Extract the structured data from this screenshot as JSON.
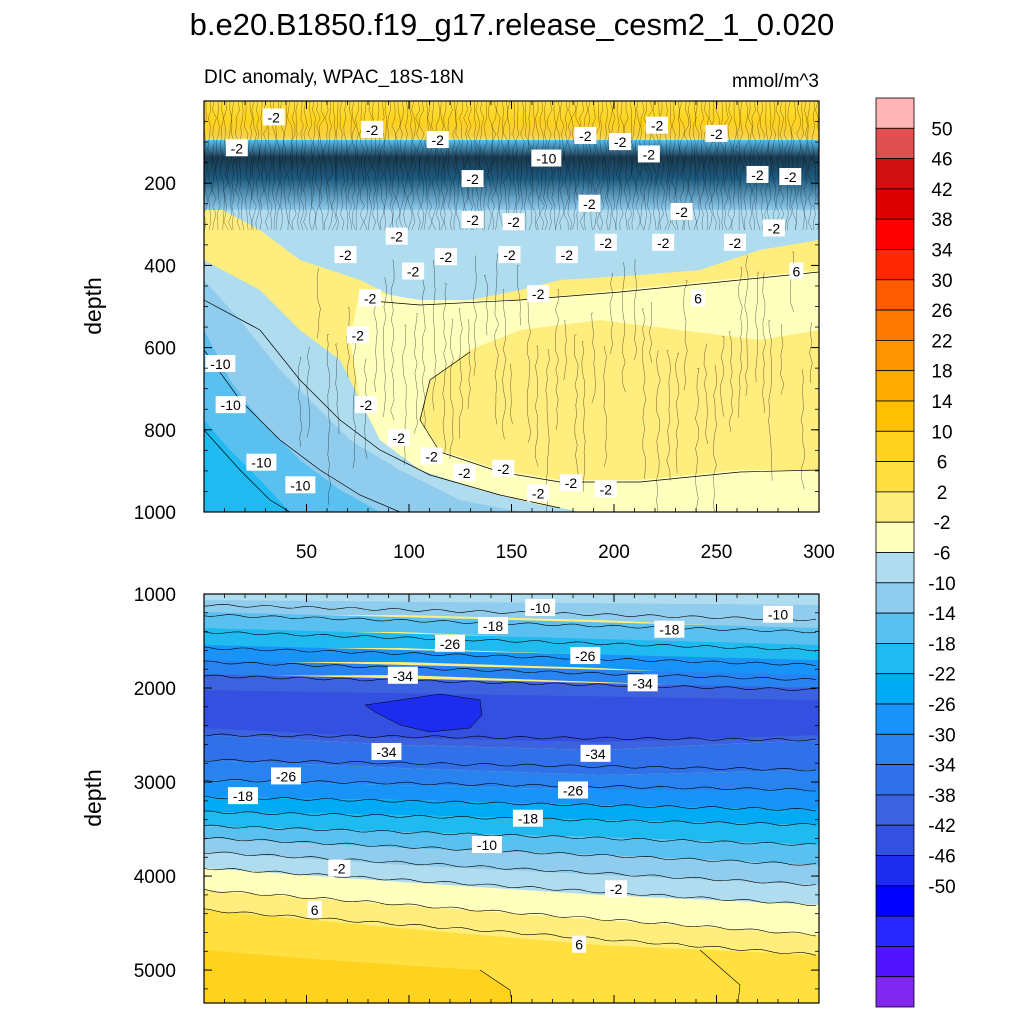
{
  "title": "b.e20.B1850.f19_g17.release_cesm2_1_0.020",
  "subtitle_left": "DIC anomaly, WPAC_18S-18N",
  "subtitle_right": "mmol/m^3",
  "chart_data": [
    {
      "type": "contour",
      "panel": "upper",
      "ylabel": "depth",
      "xlim": [
        0,
        300
      ],
      "ylim": [
        1000,
        0
      ],
      "x_ticks": [
        50,
        100,
        150,
        200,
        250,
        300
      ],
      "y_ticks": [
        200,
        400,
        600,
        800,
        1000
      ],
      "contour_labels": [
        {
          "x": 34,
          "y": 40,
          "v": "-2"
        },
        {
          "x": 16,
          "y": 115,
          "v": "-2"
        },
        {
          "x": 82,
          "y": 70,
          "v": "-2"
        },
        {
          "x": 114,
          "y": 95,
          "v": "-2"
        },
        {
          "x": 131,
          "y": 190,
          "v": "-2"
        },
        {
          "x": 167,
          "y": 140,
          "v": "-10"
        },
        {
          "x": 186,
          "y": 85,
          "v": "-2"
        },
        {
          "x": 203,
          "y": 100,
          "v": "-2"
        },
        {
          "x": 221,
          "y": 60,
          "v": "-2"
        },
        {
          "x": 217,
          "y": 130,
          "v": "-2"
        },
        {
          "x": 250,
          "y": 80,
          "v": "-2"
        },
        {
          "x": 270,
          "y": 180,
          "v": "-2"
        },
        {
          "x": 286,
          "y": 185,
          "v": "-2"
        },
        {
          "x": 131,
          "y": 290,
          "v": "-2"
        },
        {
          "x": 151,
          "y": 295,
          "v": "-2"
        },
        {
          "x": 188,
          "y": 250,
          "v": "-2"
        },
        {
          "x": 233,
          "y": 270,
          "v": "-2"
        },
        {
          "x": 278,
          "y": 310,
          "v": "-2"
        },
        {
          "x": 94,
          "y": 330,
          "v": "-2"
        },
        {
          "x": 69,
          "y": 375,
          "v": "-2"
        },
        {
          "x": 118,
          "y": 380,
          "v": "-2"
        },
        {
          "x": 149,
          "y": 375,
          "v": "-2"
        },
        {
          "x": 177,
          "y": 375,
          "v": "-2"
        },
        {
          "x": 196,
          "y": 345,
          "v": "-2"
        },
        {
          "x": 224,
          "y": 345,
          "v": "-2"
        },
        {
          "x": 259,
          "y": 345,
          "v": "-2"
        },
        {
          "x": 289,
          "y": 415,
          "v": "6"
        },
        {
          "x": 102,
          "y": 415,
          "v": "-2"
        },
        {
          "x": 81,
          "y": 480,
          "v": "-2"
        },
        {
          "x": 163,
          "y": 470,
          "v": "-2"
        },
        {
          "x": 241,
          "y": 480,
          "v": "6"
        },
        {
          "x": 75,
          "y": 570,
          "v": "-2"
        },
        {
          "x": 8,
          "y": 640,
          "v": "-10"
        },
        {
          "x": 13,
          "y": 740,
          "v": "-10"
        },
        {
          "x": 79,
          "y": 740,
          "v": "-2"
        },
        {
          "x": 95,
          "y": 820,
          "v": "-2"
        },
        {
          "x": 111,
          "y": 865,
          "v": "-2"
        },
        {
          "x": 127,
          "y": 905,
          "v": "-2"
        },
        {
          "x": 146,
          "y": 895,
          "v": "-2"
        },
        {
          "x": 28,
          "y": 880,
          "v": "-10"
        },
        {
          "x": 47,
          "y": 935,
          "v": "-10"
        },
        {
          "x": 163,
          "y": 955,
          "v": "-2"
        },
        {
          "x": 179,
          "y": 930,
          "v": "-2"
        },
        {
          "x": 196,
          "y": 945,
          "v": "-2"
        }
      ]
    },
    {
      "type": "contour",
      "panel": "lower",
      "ylabel": "depth",
      "xlim": [
        0,
        300
      ],
      "ylim": [
        5350,
        1000
      ],
      "y_ticks": [
        1000,
        2000,
        3000,
        4000,
        5000
      ],
      "contour_labels": [
        {
          "x": 164,
          "y": 1150,
          "v": "-10"
        },
        {
          "x": 280,
          "y": 1220,
          "v": "-10"
        },
        {
          "x": 141,
          "y": 1340,
          "v": "-18"
        },
        {
          "x": 227,
          "y": 1380,
          "v": "-18"
        },
        {
          "x": 120,
          "y": 1530,
          "v": "-26"
        },
        {
          "x": 186,
          "y": 1660,
          "v": "-26"
        },
        {
          "x": 97,
          "y": 1870,
          "v": "-34"
        },
        {
          "x": 214,
          "y": 1950,
          "v": "-34"
        },
        {
          "x": 89,
          "y": 2680,
          "v": "-34"
        },
        {
          "x": 191,
          "y": 2700,
          "v": "-34"
        },
        {
          "x": 40,
          "y": 2940,
          "v": "-26"
        },
        {
          "x": 180,
          "y": 3090,
          "v": "-26"
        },
        {
          "x": 19,
          "y": 3150,
          "v": "-18"
        },
        {
          "x": 158,
          "y": 3390,
          "v": "-18"
        },
        {
          "x": 138,
          "y": 3670,
          "v": "-10"
        },
        {
          "x": 66,
          "y": 3920,
          "v": "-2"
        },
        {
          "x": 201,
          "y": 4140,
          "v": "-2"
        },
        {
          "x": 54,
          "y": 4360,
          "v": "6"
        },
        {
          "x": 183,
          "y": 4730,
          "v": "6"
        }
      ]
    }
  ],
  "colorbar": {
    "colors": [
      "#ffb5b5",
      "#e05050",
      "#d01010",
      "#dd0000",
      "#ff0000",
      "#ff2800",
      "#ff5a00",
      "#ff7800",
      "#ff9400",
      "#ffac00",
      "#ffc000",
      "#ffd21e",
      "#ffe040",
      "#ffee7d",
      "#ffffbe",
      "#b0dcf0",
      "#90cced",
      "#5ac0f0",
      "#1ebaf0",
      "#00aaf5",
      "#1894f8",
      "#2882f0",
      "#3070e8",
      "#3c62e0",
      "#3450e0",
      "#1c2df0",
      "#0000ff",
      "#2828ff",
      "#5014ff",
      "#8028f0"
    ],
    "labels": [
      "50",
      "46",
      "42",
      "38",
      "34",
      "30",
      "26",
      "22",
      "18",
      "14",
      "10",
      "6",
      "2",
      "-2",
      "-6",
      "-10",
      "-14",
      "-18",
      "-22",
      "-26",
      "-30",
      "-34",
      "-38",
      "-42",
      "-46",
      "-50"
    ]
  }
}
